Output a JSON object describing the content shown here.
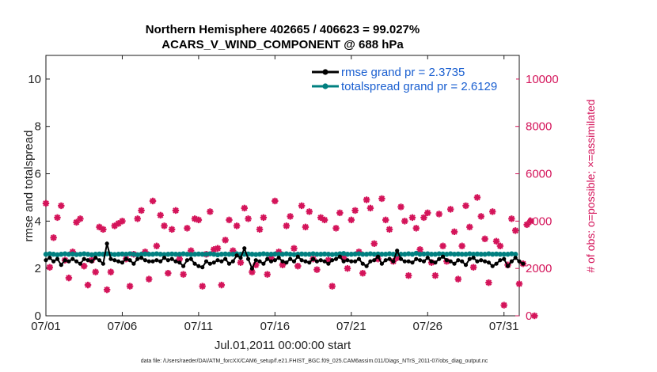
{
  "chart_data": {
    "type": "line",
    "title_line1": "Northern Hemisphere 402665 / 406623 = 99.027%",
    "title_line2": "ACARS_V_WIND_COMPONENT @ 688 hPa",
    "xlabel": "Jul.01,2011 00:00:00 start",
    "ylabel_left": "rmse and totalspread",
    "ylabel_right": "# of obs: o=possible; ×=assimilated",
    "footer": "data file: /Users/raeder/DAI/ATM_forcXX/CAM6_setup/f.e21.FHIST_BGC.f09_025.CAM6assim.011/Diags_NTrS_2011-07/obs_diag_output.nc",
    "x_ticks": [
      "07/01",
      "07/06",
      "07/11",
      "07/16",
      "07/21",
      "07/26",
      "07/31"
    ],
    "x_tick_days": [
      0,
      5,
      10,
      15,
      20,
      25,
      30
    ],
    "xlim": [
      0,
      31
    ],
    "ylim_left": [
      0,
      11
    ],
    "y_ticks_left": [
      "0",
      "2",
      "4",
      "6",
      "8",
      "10"
    ],
    "y_tick_values_left": [
      0,
      2,
      4,
      6,
      8,
      10
    ],
    "ylim_right": [
      0,
      11000
    ],
    "y_ticks_right": [
      "0",
      "2000",
      "4000",
      "6000",
      "8000",
      "10000"
    ],
    "y_tick_values_right": [
      0,
      2000,
      4000,
      6000,
      8000,
      10000
    ],
    "colors": {
      "rmse": "#000000",
      "totalspread": "#008080",
      "obs": "#d4145a",
      "legend_text": "#1a5fd0",
      "right_axis": "#d4145a"
    },
    "series": [
      {
        "name": "rmse grand pr = 2.3735",
        "step_days": 0.25,
        "values": [
          2.35,
          2.45,
          2.3,
          2.4,
          2.15,
          2.35,
          2.3,
          2.4,
          2.3,
          2.2,
          2.4,
          2.35,
          2.3,
          2.45,
          2.35,
          2.2,
          3.05,
          2.4,
          2.35,
          2.3,
          2.25,
          2.4,
          2.35,
          2.2,
          2.4,
          2.45,
          2.35,
          2.3,
          2.3,
          2.35,
          2.3,
          2.45,
          2.35,
          2.4,
          2.3,
          2.25,
          2.1,
          2.35,
          2.4,
          2.2,
          2.1,
          2.05,
          2.3,
          2.2,
          2.25,
          2.35,
          2.3,
          2.4,
          2.2,
          2.3,
          2.55,
          2.45,
          2.85,
          2.4,
          2.0,
          2.35,
          2.3,
          2.2,
          2.4,
          2.3,
          2.35,
          2.45,
          2.3,
          2.25,
          2.4,
          2.3,
          2.5,
          2.35,
          2.3,
          2.25,
          2.4,
          2.3,
          2.35,
          2.3,
          2.2,
          2.35,
          2.4,
          2.5,
          2.3,
          2.35,
          2.3,
          2.3,
          2.4,
          2.2,
          2.1,
          2.3,
          2.35,
          2.5,
          2.2,
          2.35,
          2.4,
          2.3,
          2.75,
          2.4,
          2.3,
          2.3,
          2.25,
          2.4,
          2.35,
          2.3,
          2.45,
          2.3,
          2.25,
          2.4,
          2.5,
          2.35,
          2.3,
          2.2,
          2.35,
          2.3,
          2.15,
          2.4,
          2.45,
          2.3,
          2.35,
          2.3,
          2.25,
          2.1,
          2.2,
          2.35,
          2.4,
          2.1,
          2.3,
          2.45,
          2.3,
          2.2
        ]
      },
      {
        "name": "totalspread grand pr = 2.6129",
        "step_days": 0.25,
        "values": [
          2.6,
          2.62,
          2.6,
          2.58,
          2.6,
          2.62,
          2.6,
          2.61,
          2.59,
          2.6,
          2.62,
          2.6,
          2.58,
          2.6,
          2.61,
          2.6,
          2.62,
          2.6,
          2.59,
          2.6,
          2.61,
          2.6,
          2.62,
          2.6,
          2.58,
          2.6,
          2.61,
          2.6,
          2.6,
          2.62,
          2.6,
          2.59,
          2.6,
          2.61,
          2.6,
          2.6,
          2.62,
          2.6,
          2.59,
          2.6,
          2.61,
          2.6,
          2.6,
          2.62,
          2.6,
          2.58,
          2.6,
          2.61,
          2.6,
          2.6,
          2.62,
          2.6,
          2.6,
          2.61,
          2.6,
          2.59,
          2.6,
          2.62,
          2.6,
          2.6,
          2.61,
          2.6,
          2.6,
          2.62,
          2.6,
          2.59,
          2.6,
          2.61,
          2.6,
          2.6,
          2.62,
          2.6,
          2.6,
          2.61,
          2.6,
          2.59,
          2.6,
          2.62,
          2.63,
          2.6,
          2.6,
          2.61,
          2.62,
          2.6,
          2.6,
          2.62,
          2.6,
          2.61,
          2.6,
          2.6,
          2.62,
          2.6,
          2.61,
          2.6,
          2.6,
          2.62,
          2.6,
          2.64,
          2.6,
          2.61,
          2.62,
          2.6,
          2.6,
          2.62,
          2.61,
          2.6,
          2.62,
          2.6,
          2.61,
          2.6,
          2.6,
          2.62,
          2.6,
          2.61,
          2.6,
          2.6,
          2.62,
          2.6,
          2.61,
          2.6,
          2.6,
          2.6,
          2.62,
          2.6
        ]
      }
    ],
    "obs_counts": {
      "name": "# of obs",
      "step_days": 0.25,
      "values": [
        4750,
        2050,
        3300,
        4150,
        4650,
        2350,
        1600,
        2700,
        3950,
        4100,
        2100,
        1300,
        2350,
        1850,
        3750,
        3650,
        1100,
        1850,
        3800,
        3900,
        4000,
        2400,
        1250,
        2600,
        4100,
        4450,
        2700,
        1550,
        4850,
        2950,
        4250,
        3800,
        1800,
        3650,
        4450,
        2400,
        1750,
        3700,
        2750,
        4100,
        4050,
        1250,
        2600,
        4400,
        2800,
        2850,
        1300,
        3200,
        4050,
        2750,
        3800,
        2250,
        4550,
        4100,
        1850,
        2150,
        3650,
        4150,
        1750,
        2450,
        4850,
        2700,
        2150,
        3800,
        4200,
        2850,
        2100,
        4650,
        3750,
        4400,
        2400,
        1950,
        4150,
        4050,
        2350,
        1250,
        3700,
        4350,
        2450,
        2000,
        4050,
        4450,
        2700,
        1800,
        4900,
        4550,
        3050,
        2400,
        4950,
        4050,
        3650,
        2300,
        2450,
        4600,
        4000,
        1700,
        4150,
        3700,
        2800,
        4150,
        4350,
        2250,
        1700,
        4300,
        2950,
        2300,
        4500,
        3550,
        1550,
        2950,
        4650,
        3750,
        2050,
        5000,
        4200,
        3250,
        1400,
        4400,
        3150,
        2950,
        450,
        2150,
        4100,
        3600,
        1350,
        2200,
        3850,
        4000,
        0
      ]
    },
    "legend": {
      "rmse_label": "rmse grand pr = 2.3735",
      "spread_label": "totalspread grand pr = 2.6129",
      "position": "top-right"
    }
  }
}
